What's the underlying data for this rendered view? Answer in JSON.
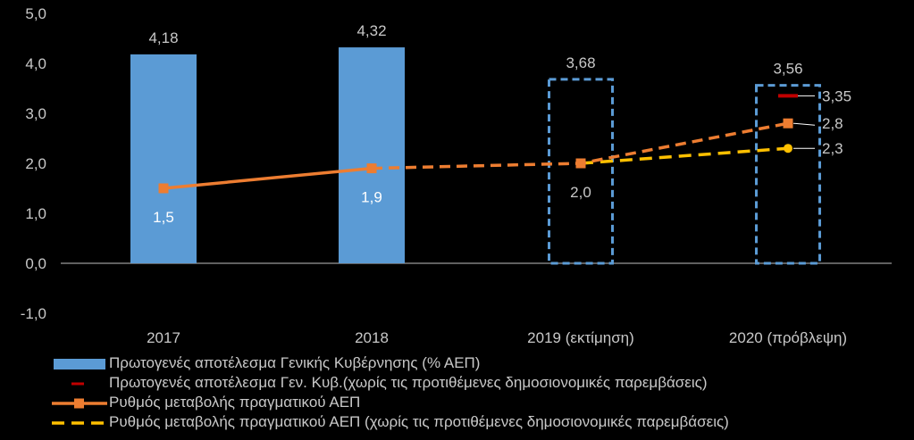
{
  "chart_data": {
    "type": "bar",
    "categories": [
      "2017",
      "2018",
      "2019 (εκτίμηση)",
      "2020 (πρόβλεψη)"
    ],
    "ylim": [
      -1,
      5
    ],
    "yticks": [
      -1,
      0,
      1,
      2,
      3,
      4,
      5
    ],
    "ytick_labels": [
      "-1,0",
      "0,0",
      "1,0",
      "2,0",
      "3,0",
      "4,0",
      "5,0"
    ],
    "grid": false,
    "legend_position": "bottom",
    "series": [
      {
        "name": "Πρωτογενές αποτέλεσμα Γενικής Κυβέρνησης (% ΑΕΠ)",
        "kind": "bar",
        "values": [
          4.18,
          4.32,
          3.68,
          3.56
        ],
        "labels": [
          "4,18",
          "4,32",
          "3,68",
          "3,56"
        ],
        "fill": "#5b9bd5",
        "outline_dashed_for": [
          "2019 (εκτίμηση)",
          "2020 (πρόβλεψη)"
        ]
      },
      {
        "name": "Πρωτογενές αποτέλεσμα Γεν. Κυβ.(χωρίς τις προτιθέμενες δημοσιονομικές παρεμβάσεις)",
        "kind": "marker",
        "values": [
          null,
          null,
          null,
          3.35
        ],
        "labels": [
          "",
          "",
          "",
          "3,35"
        ],
        "color": "#c00000"
      },
      {
        "name": "Ρυθμός μεταβολής πραγματικού ΑΕΠ",
        "kind": "line",
        "values": [
          1.5,
          1.9,
          2.0,
          2.8
        ],
        "labels": [
          "1,5",
          "1,9",
          "2,0",
          "2,8"
        ],
        "color": "#ed7d31",
        "dashed_from": "2018"
      },
      {
        "name": "Ρυθμός μεταβολής πραγματικού ΑΕΠ (χωρίς τις προτιθέμενες δημοσιονομικές παρεμβάσεις)",
        "kind": "line",
        "values": [
          null,
          null,
          2.0,
          2.3
        ],
        "labels": [
          "",
          "",
          "",
          "2,3"
        ],
        "color": "#ffc000",
        "dashed": true
      }
    ]
  }
}
